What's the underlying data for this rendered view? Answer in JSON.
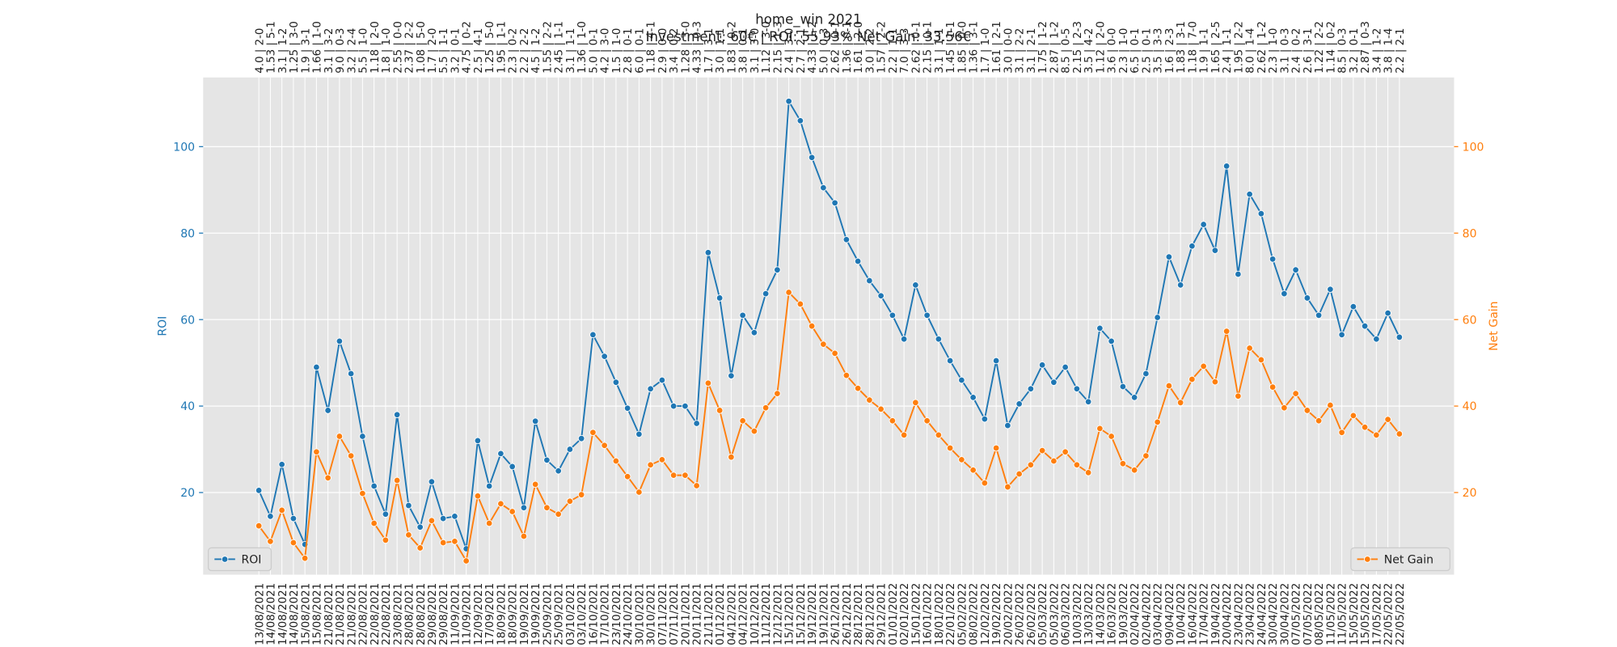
{
  "chart_data": {
    "type": "line",
    "title": "home_win 2021",
    "subtitle": "Investment: 60€ | ROI: 55.93% Net Gain: 33.56€",
    "ylabel": "ROI",
    "y2label": "Net Gain",
    "grid": true,
    "ylim": [
      1,
      116
    ],
    "yticks": [
      20,
      40,
      60,
      80,
      100
    ],
    "y2lim": [
      1,
      116
    ],
    "y2ticks": [
      20,
      40,
      60,
      80,
      100
    ],
    "categories": [
      "13/08/2021",
      "14/08/2021",
      "14/08/2021",
      "14/08/2021",
      "15/08/2021",
      "15/08/2021",
      "21/08/2021",
      "21/08/2021",
      "21/08/2021",
      "22/08/2021",
      "22/08/2021",
      "22/08/2021",
      "23/08/2021",
      "28/08/2021",
      "28/08/2021",
      "29/08/2021",
      "29/08/2021",
      "11/09/2021",
      "11/09/2021",
      "12/09/2021",
      "17/09/2021",
      "18/09/2021",
      "18/09/2021",
      "19/09/2021",
      "19/09/2021",
      "25/09/2021",
      "25/09/2021",
      "03/10/2021",
      "03/10/2021",
      "16/10/2021",
      "17/10/2021",
      "23/10/2021",
      "24/10/2021",
      "30/10/2021",
      "30/10/2021",
      "07/11/2021",
      "07/11/2021",
      "20/11/2021",
      "20/11/2021",
      "21/11/2021",
      "01/12/2021",
      "04/12/2021",
      "04/12/2021",
      "10/12/2021",
      "11/12/2021",
      "12/12/2021",
      "15/12/2021",
      "15/12/2021",
      "19/12/2021",
      "19/12/2021",
      "26/12/2021",
      "26/12/2021",
      "28/12/2021",
      "28/12/2021",
      "29/12/2021",
      "01/01/2022",
      "02/01/2022",
      "15/01/2022",
      "16/01/2022",
      "18/01/2022",
      "22/01/2022",
      "05/02/2022",
      "08/02/2022",
      "12/02/2022",
      "19/02/2022",
      "20/02/2022",
      "26/02/2022",
      "26/02/2022",
      "05/03/2022",
      "05/03/2022",
      "06/03/2022",
      "10/03/2022",
      "13/03/2022",
      "14/03/2022",
      "16/03/2022",
      "19/03/2022",
      "02/04/2022",
      "02/04/2022",
      "03/04/2022",
      "09/04/2022",
      "10/04/2022",
      "16/04/2022",
      "17/04/2022",
      "19/04/2022",
      "20/04/2022",
      "23/04/2022",
      "23/04/2022",
      "24/04/2022",
      "30/04/2022",
      "30/04/2022",
      "07/05/2022",
      "07/05/2022",
      "08/05/2022",
      "11/05/2022",
      "11/05/2022",
      "15/05/2022",
      "15/05/2022",
      "17/05/2022",
      "22/05/2022",
      "22/05/2022"
    ],
    "top_categories": [
      "4.0 | 2-0",
      "1.53 | 5-1",
      "3.1 | 1-2",
      "1.25 | 3-0",
      "1.9 | 3-1",
      "1.66 | 1-0",
      "3.1 | 3-2",
      "9.0 | 0-3",
      "3.2 | 2-4",
      "5.5 | 1-0",
      "1.18 | 2-0",
      "1.8 | 1-0",
      "2.55 | 0-0",
      "2.37 | 2-2",
      "1.08 | 5-0",
      "1.7 | 2-0",
      "5.5 | 1-1",
      "3.2 | 0-1",
      "4.75 | 0-2",
      "2.5 | 4-1",
      "1.25 | 5-0",
      "1.95 | 1-1",
      "2.3 | 0-2",
      "2.2 | 2-2",
      "4.5 | 1-2",
      "1.55 | 2-2",
      "2.45 | 1-1",
      "3.1 | 1-1",
      "1.36 | 1-0",
      "5.0 | 0-1",
      "4.2 | 3-0",
      "1.5 | 1-0",
      "2.8 | 0-1",
      "6.0 | 0-1",
      "1.18 | 4-1",
      "2.9 | 0-0",
      "3.4 | 0-2",
      "1.28 | 3-0",
      "4.33 | 0-3",
      "1.7 | 3-1",
      "3.0 | 1-1",
      "1.83 | 0-2",
      "3.8 | 0-1",
      "3.1 | 3-0",
      "1.12 | 3-0",
      "2.15 | 1-3",
      "2.4 | 3-0",
      "2.7 | 2-1",
      "4.33 | 1-2",
      "5.0 | 0-3",
      "2.62 | 0-1",
      "1.36 | 0-1",
      "1.61 | 2-0",
      "3.0 | 2-2",
      "1.57 | 2-2",
      "2.2 | 1-1",
      "7.0 | 3-3",
      "2.62 | 0-1",
      "2.15 | 0-1",
      "3.1 | 1-1",
      "1.45 | 1-1",
      "1.85 | 0-0",
      "1.36 | 3-1",
      "1.7 | 1-0",
      "1.61 | 2-1",
      "3.0 | 0-0",
      "3.1 | 2-2",
      "3.1 | 2-1",
      "1.75 | 1-2",
      "2.87 | 1-2",
      "8.5 | 0-5",
      "2.15 | 2-3",
      "3.5 | 4-2",
      "1.12 | 2-0",
      "3.6 | 0-0",
      "2.3 | 1-0",
      "6.5 | 0-1",
      "2.5 | 0-1",
      "3.5 | 3-3",
      "1.6 | 2-3",
      "1.83 | 3-1",
      "1.18 | 7-0",
      "1.9 | 1-1",
      "1.65 | 2-5",
      "2.4 | 1-1",
      "1.95 | 2-2",
      "8.0 | 1-4",
      "2.62 | 1-2",
      "2.3 | 1-0",
      "3.1 | 0-3",
      "2.4 | 0-2",
      "2.6 | 3-1",
      "1.22 | 2-2",
      "1.14 | 0-2",
      "8.5 | 0-3",
      "3.2 | 0-1",
      "2.87 | 0-3",
      "3.4 | 1-2",
      "3.8 | 1-4",
      "2.2 | 2-1"
    ],
    "series": [
      {
        "name": "ROI",
        "color": "#1f77b4",
        "axis": "y",
        "legend": "lower left",
        "values": [
          20.5,
          14.5,
          26.5,
          14,
          8,
          49,
          39,
          55,
          47.5,
          33,
          21.5,
          15,
          38,
          17,
          12,
          22.5,
          14,
          14.5,
          7,
          32,
          21.5,
          29,
          26,
          16.5,
          36.5,
          27.5,
          25,
          30,
          32.5,
          56.5,
          51.5,
          45.5,
          39.5,
          33.5,
          44,
          46,
          40,
          40,
          36,
          75.5,
          65,
          47,
          61,
          57,
          66,
          71.5,
          110.5,
          106,
          97.5,
          90.5,
          87,
          78.5,
          73.5,
          69,
          65.5,
          61,
          55.5,
          68,
          61,
          55.5,
          50.5,
          46,
          42,
          37,
          50.5,
          35.5,
          40.5,
          44,
          49.5,
          45.5,
          49,
          44,
          41,
          58,
          55,
          44.5,
          42,
          47.5,
          60.5,
          74.5,
          68,
          77,
          82,
          76,
          95.5,
          70.5,
          89,
          84.5,
          74,
          66,
          71.5,
          65,
          61,
          67,
          56.5,
          63,
          58.5,
          55.5,
          61.5,
          55.93
        ]
      },
      {
        "name": "Net Gain",
        "color": "#ff7f0e",
        "axis": "y2",
        "legend": "lower right",
        "values": [
          12.3,
          8.7,
          15.9,
          8.4,
          4.8,
          29.4,
          23.4,
          33,
          28.5,
          19.8,
          12.9,
          9,
          22.8,
          10.2,
          7.2,
          13.5,
          8.4,
          8.7,
          4.2,
          19.2,
          12.9,
          17.4,
          15.6,
          9.9,
          21.9,
          16.5,
          15,
          18,
          19.5,
          33.9,
          30.9,
          27.3,
          23.7,
          20.1,
          26.4,
          27.6,
          24,
          24,
          21.6,
          45.3,
          39,
          28.2,
          36.6,
          34.2,
          39.6,
          42.9,
          66.3,
          63.6,
          58.5,
          54.3,
          52.2,
          47.1,
          44.1,
          41.4,
          39.3,
          36.6,
          33.3,
          40.8,
          36.6,
          33.3,
          30.3,
          27.6,
          25.2,
          22.2,
          30.3,
          21.3,
          24.3,
          26.4,
          29.7,
          27.3,
          29.4,
          26.4,
          24.6,
          34.8,
          33,
          26.7,
          25.2,
          28.5,
          36.3,
          44.7,
          40.8,
          46.2,
          49.2,
          45.6,
          57.3,
          42.3,
          53.4,
          50.7,
          44.4,
          39.6,
          42.9,
          39,
          36.6,
          40.2,
          33.9,
          37.8,
          35.1,
          33.3,
          36.9,
          33.56
        ]
      }
    ]
  }
}
